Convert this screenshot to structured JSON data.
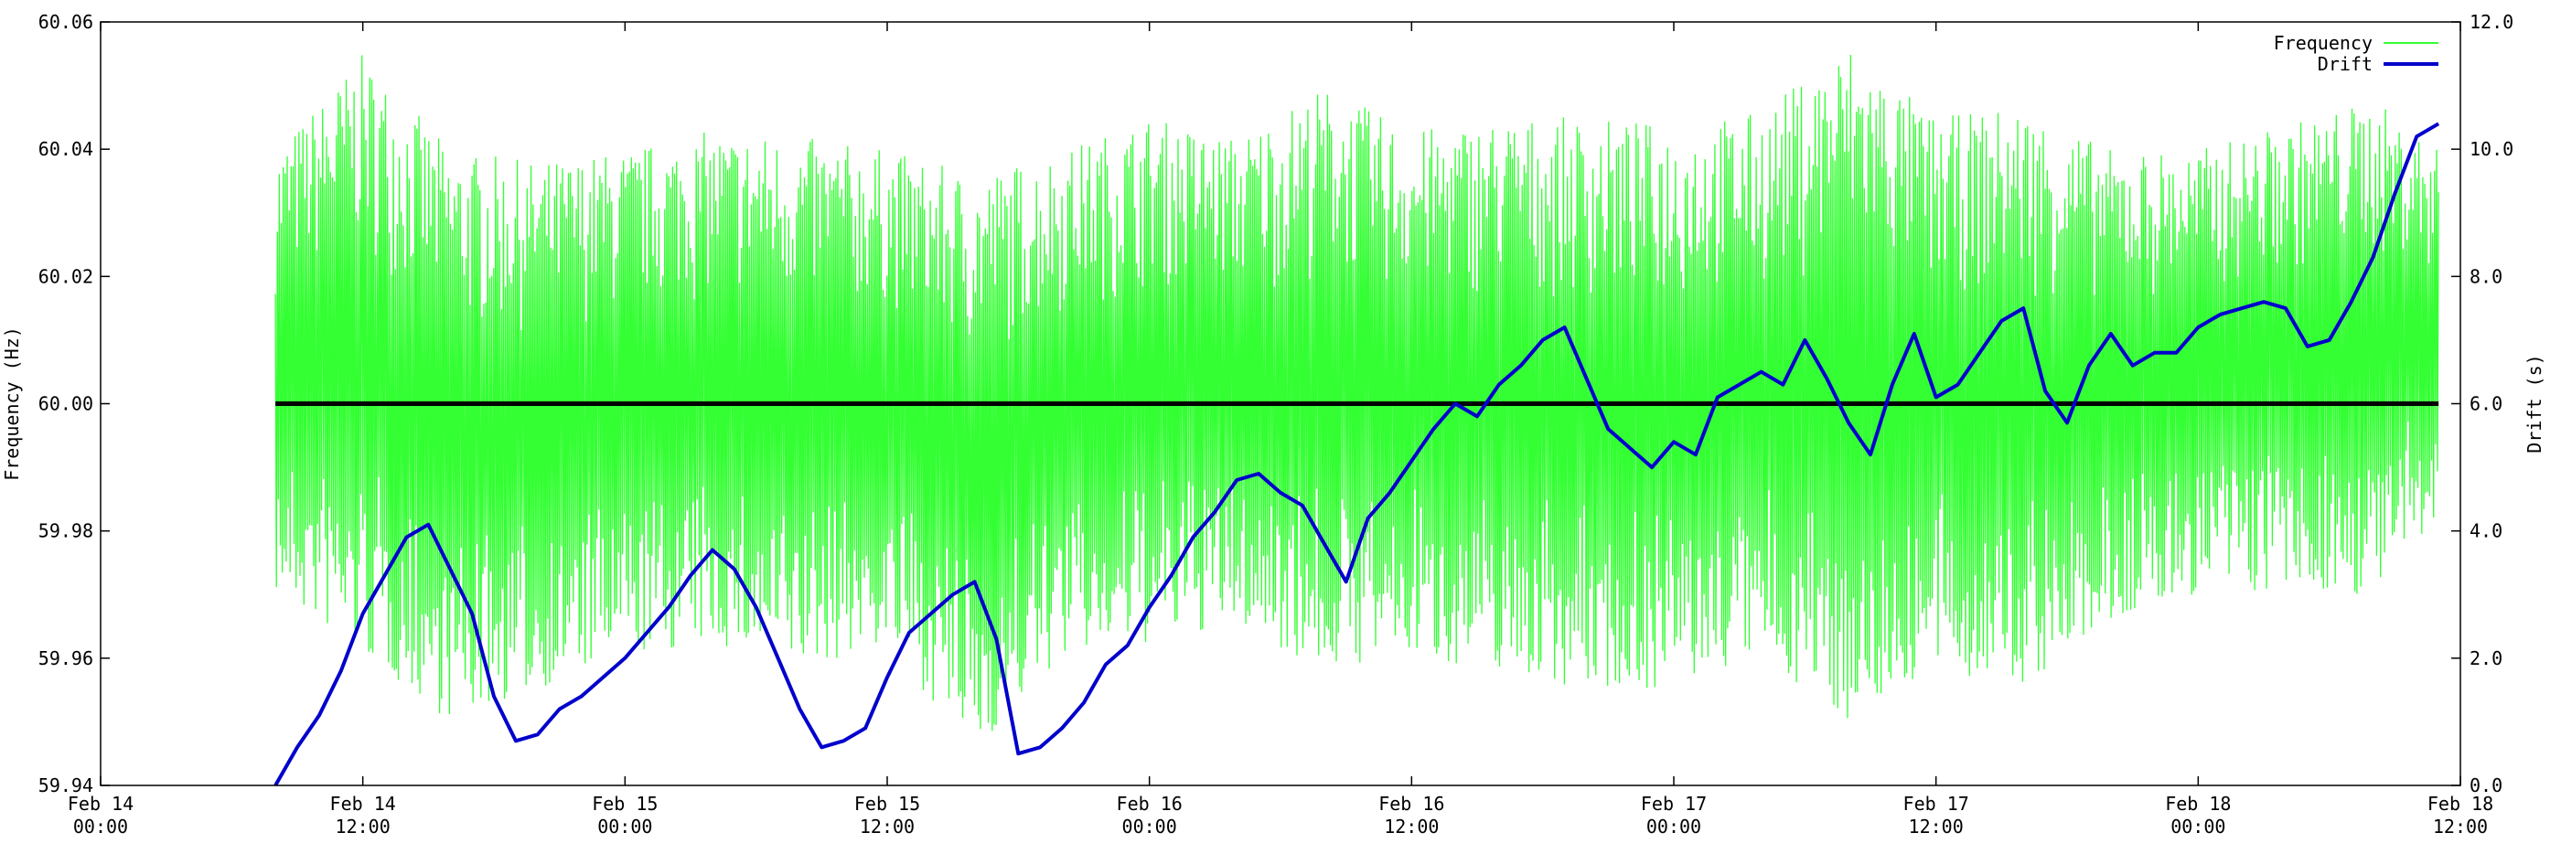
{
  "chart_data": {
    "type": "line",
    "title": "",
    "x_axis": {
      "ticks": [
        {
          "line1": "Feb 14",
          "line2": "00:00"
        },
        {
          "line1": "Feb 14",
          "line2": "12:00"
        },
        {
          "line1": "Feb 15",
          "line2": "00:00"
        },
        {
          "line1": "Feb 15",
          "line2": "12:00"
        },
        {
          "line1": "Feb 16",
          "line2": "00:00"
        },
        {
          "line1": "Feb 16",
          "line2": "12:00"
        },
        {
          "line1": "Feb 17",
          "line2": "00:00"
        },
        {
          "line1": "Feb 17",
          "line2": "12:00"
        },
        {
          "line1": "Feb 18",
          "line2": "00:00"
        },
        {
          "line1": "Feb 18",
          "line2": "12:00"
        }
      ],
      "range_hours": [
        0,
        108
      ]
    },
    "y_left": {
      "label": "Frequency (Hz)",
      "range": [
        59.94,
        60.06
      ],
      "ticks": [
        "59.94",
        "59.96",
        "59.98",
        "60.00",
        "60.02",
        "60.04",
        "60.06"
      ]
    },
    "y_right": {
      "label": "Drift (s)",
      "range": [
        0.0,
        12.0
      ],
      "ticks": [
        "0.0",
        "2.0",
        "4.0",
        "6.0",
        "8.0",
        "10.0",
        "12.0"
      ]
    },
    "legend": [
      {
        "label": "Frequency",
        "color": "#33ff33"
      },
      {
        "label": "Drift",
        "color": "#0000cc"
      }
    ],
    "legend_position": "top-right",
    "grid": false,
    "reference_line": {
      "value": 60.0,
      "color": "#000000"
    },
    "series": [
      {
        "name": "Frequency",
        "axis": "left",
        "color": "#33ff33",
        "style": "dense-oscillation",
        "x_range_hours": [
          8,
          107
        ],
        "upper_envelope_hours": [
          8,
          12,
          16,
          20,
          24,
          28,
          32,
          36,
          40,
          44,
          48,
          52,
          56,
          60,
          64,
          68,
          72,
          76,
          80,
          84,
          88,
          92,
          96,
          100,
          104,
          107
        ],
        "upper_envelope": [
          60.04,
          60.055,
          60.04,
          60.038,
          60.04,
          60.043,
          60.042,
          60.04,
          60.036,
          60.04,
          60.045,
          60.042,
          60.05,
          60.043,
          60.045,
          60.045,
          60.044,
          60.046,
          60.057,
          60.045,
          60.047,
          60.04,
          60.04,
          60.044,
          60.048,
          60.04
        ],
        "lower_envelope": [
          59.97,
          59.96,
          59.95,
          59.955,
          59.96,
          59.962,
          59.958,
          59.962,
          59.945,
          59.96,
          59.962,
          59.965,
          59.958,
          59.96,
          59.958,
          59.955,
          59.955,
          59.96,
          59.95,
          59.958,
          59.955,
          59.965,
          59.97,
          59.97,
          59.97,
          59.98
        ]
      },
      {
        "name": "Drift",
        "axis": "right",
        "color": "#0000cc",
        "x_hours": [
          8,
          9,
          10,
          11,
          12,
          13,
          14,
          15,
          16,
          17,
          18,
          19,
          20,
          21,
          22,
          23,
          24,
          25,
          26,
          27,
          28,
          29,
          30,
          31,
          32,
          33,
          34,
          35,
          36,
          37,
          38,
          39,
          40,
          41,
          42,
          43,
          44,
          45,
          46,
          47,
          48,
          49,
          50,
          51,
          52,
          53,
          54,
          55,
          56,
          57,
          58,
          59,
          60,
          61,
          62,
          63,
          64,
          65,
          66,
          67,
          68,
          69,
          70,
          71,
          72,
          73,
          74,
          75,
          76,
          77,
          78,
          79,
          80,
          81,
          82,
          83,
          84,
          85,
          86,
          87,
          88,
          89,
          90,
          91,
          92,
          93,
          94,
          95,
          96,
          97,
          98,
          99,
          100,
          101,
          102,
          103,
          104,
          105,
          106,
          107
        ],
        "values": [
          0.0,
          0.6,
          1.1,
          1.8,
          2.7,
          3.3,
          3.9,
          4.1,
          3.4,
          2.7,
          1.4,
          0.7,
          0.8,
          1.2,
          1.4,
          1.7,
          2.0,
          2.4,
          2.8,
          3.3,
          3.7,
          3.4,
          2.8,
          2.0,
          1.2,
          0.6,
          0.7,
          0.9,
          1.7,
          2.4,
          2.7,
          3.0,
          3.2,
          2.3,
          0.5,
          0.6,
          0.9,
          1.3,
          1.9,
          2.2,
          2.8,
          3.3,
          3.9,
          4.3,
          4.8,
          4.9,
          4.6,
          4.4,
          3.8,
          3.2,
          4.2,
          4.6,
          5.1,
          5.6,
          6.0,
          5.8,
          6.3,
          6.6,
          7.0,
          7.2,
          6.4,
          5.6,
          5.3,
          5.0,
          5.4,
          5.2,
          6.1,
          6.3,
          6.5,
          6.3,
          7.0,
          6.4,
          5.7,
          5.2,
          6.3,
          7.1,
          6.1,
          6.3,
          6.8,
          7.3,
          7.5,
          6.2,
          5.7,
          6.6,
          7.1,
          6.6,
          6.8,
          6.8,
          7.2,
          7.4,
          7.5,
          7.6,
          7.5,
          6.9,
          7.0,
          7.6,
          8.3,
          9.3,
          10.2,
          10.4
        ]
      }
    ]
  }
}
